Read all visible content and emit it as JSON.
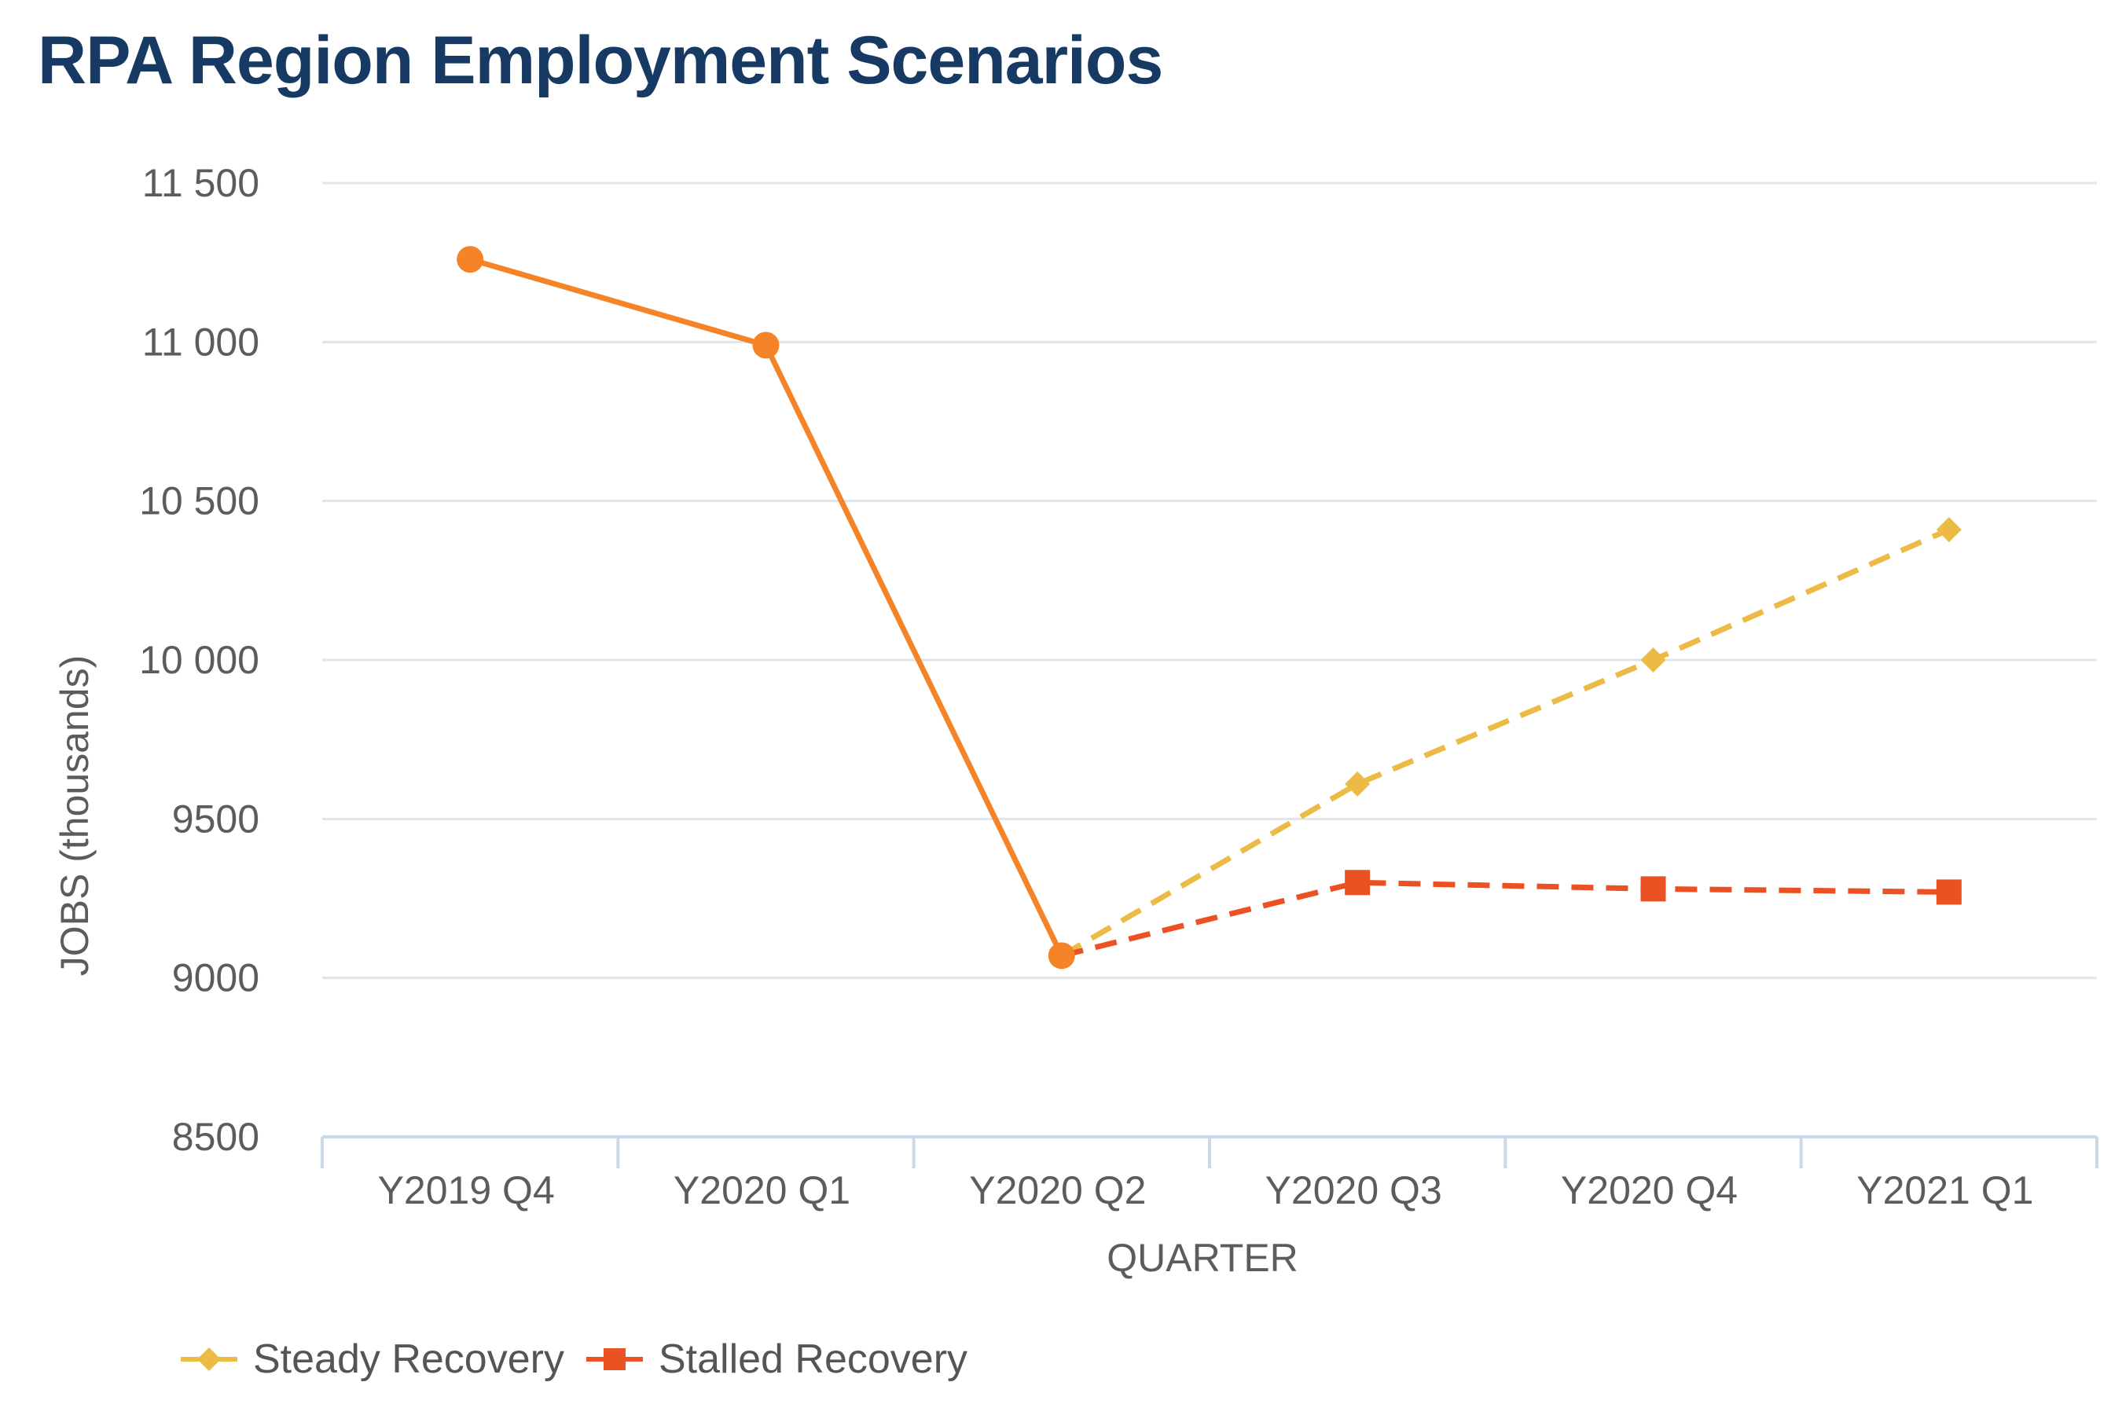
{
  "title": "RPA Region Employment Scenarios",
  "chart_data": {
    "type": "line",
    "categories": [
      "Y2019 Q4",
      "Y2020 Q1",
      "Y2020 Q2",
      "Y2020 Q3",
      "Y2020 Q4",
      "Y2021 Q1"
    ],
    "xlabel": "QUARTER",
    "ylabel": "JOBS (thousands)",
    "ylim": [
      8500,
      11500
    ],
    "yticks": [
      8500,
      9000,
      9500,
      10000,
      10500,
      11000,
      11500
    ],
    "ytick_labels": [
      "8500",
      "9000",
      "9500",
      "10 000",
      "10 500",
      "11 000",
      "11 500"
    ],
    "grid": true,
    "legend_position": "bottom-left",
    "series": [
      {
        "values": [
          11260,
          10990,
          9070,
          null,
          null,
          null
        ],
        "color": "#f58327",
        "marker": "circle",
        "line_style": "solid"
      },
      {
        "name": "Steady Recovery",
        "values": [
          null,
          null,
          9070,
          9610,
          10000,
          10410
        ],
        "color": "#ebbb45",
        "marker": "diamond",
        "line_style": "dashed"
      },
      {
        "name": "Stalled Recovery",
        "values": [
          null,
          null,
          9070,
          9300,
          9280,
          9270
        ],
        "color": "#ec5124",
        "marker": "square",
        "line_style": "dashed"
      }
    ]
  }
}
